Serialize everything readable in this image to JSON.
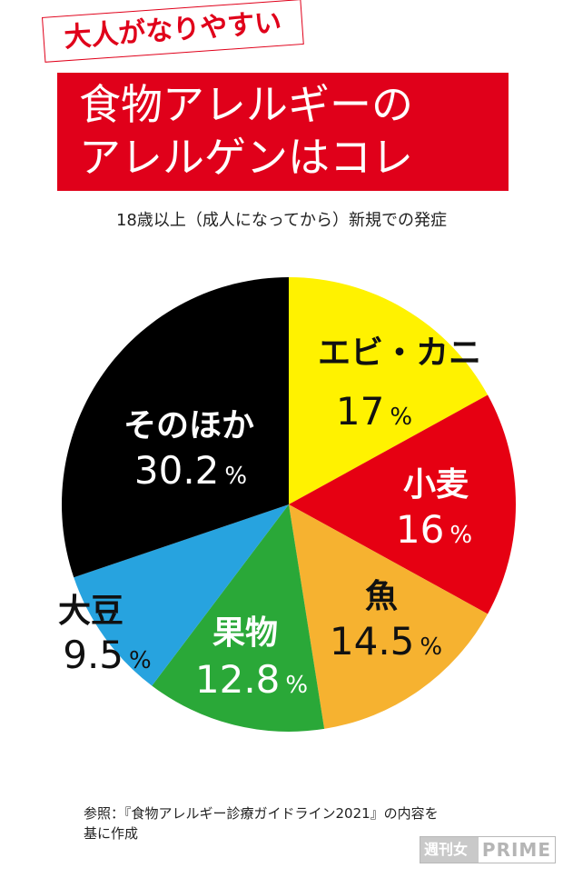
{
  "header": {
    "tag": "大人がなりやすい",
    "title_line1": "食物アレルギーの",
    "title_line2": "アレルゲンはコレ"
  },
  "subtitle": "18歳以上（成人になってから）新規での発症",
  "chart_data": {
    "type": "pie",
    "unit": "%",
    "slices": [
      {
        "name": "エビ・カニ",
        "value": 17,
        "label": "17",
        "color": "#fff200",
        "text_color": "#111111"
      },
      {
        "name": "小麦",
        "value": 16,
        "label": "16",
        "color": "#e60012",
        "text_color": "#ffffff"
      },
      {
        "name": "魚",
        "value": 14.5,
        "label": "14.5",
        "color": "#f6b230",
        "text_color": "#111111"
      },
      {
        "name": "果物",
        "value": 12.8,
        "label": "12.8",
        "color": "#2aa838",
        "text_color": "#ffffff"
      },
      {
        "name": "大豆",
        "value": 9.5,
        "label": "9.5",
        "color": "#27a3df",
        "text_color": "#111111"
      },
      {
        "name": "そのほか",
        "value": 30.2,
        "label": "30.2",
        "color": "#000000",
        "text_color": "#ffffff"
      }
    ]
  },
  "footer": {
    "line1": "参照：『食物アレルギー診療ガイドライン2021』の内容を",
    "line2": "基に作成"
  },
  "logo": {
    "part1": "週刊女性",
    "part2": "PRIME"
  }
}
